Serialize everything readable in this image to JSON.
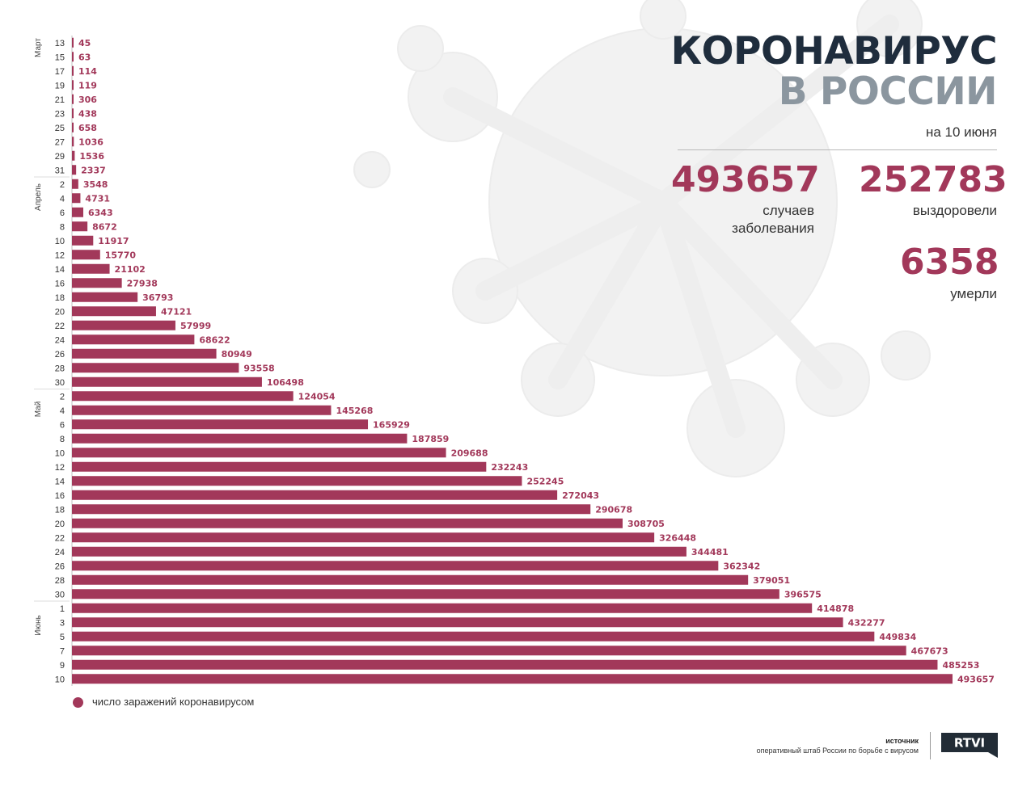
{
  "header": {
    "title_line1": "КОРОНАВИРУС",
    "title_line2": "В РОССИИ",
    "date": "на 10 июня"
  },
  "stats": {
    "cases_value": "493657",
    "cases_label_line1": "случаев",
    "cases_label_line2": "заболевания",
    "recovered_value": "252783",
    "recovered_label": "выздоровели",
    "deaths_value": "6358",
    "deaths_label": "умерли"
  },
  "legend": {
    "label": "число заражений коронавирусом"
  },
  "source": {
    "title": "источник",
    "text": "оперативный штаб России по борьбе с вирусом"
  },
  "logo": {
    "text": "RTVI"
  },
  "colors": {
    "bar": "#a2385a",
    "title_dark": "#1f2d3d",
    "title_gray": "#8b969f"
  },
  "chart_data": {
    "type": "bar",
    "orientation": "horizontal",
    "categories": [
      "13",
      "15",
      "17",
      "19",
      "21",
      "23",
      "25",
      "27",
      "29",
      "31",
      "2",
      "4",
      "6",
      "8",
      "10",
      "12",
      "14",
      "16",
      "18",
      "20",
      "22",
      "24",
      "26",
      "28",
      "30",
      "2",
      "4",
      "6",
      "8",
      "10",
      "12",
      "14",
      "16",
      "18",
      "20",
      "22",
      "24",
      "26",
      "28",
      "30",
      "1",
      "3",
      "5",
      "7",
      "9",
      "10"
    ],
    "month_groups": [
      {
        "label": "Март",
        "start": 0,
        "end": 9
      },
      {
        "label": "Апрель",
        "start": 10,
        "end": 24
      },
      {
        "label": "Май",
        "start": 25,
        "end": 39
      },
      {
        "label": "Июнь",
        "start": 40,
        "end": 45
      }
    ],
    "series": [
      {
        "name": "число заражений коронавирусом",
        "values": [
          45,
          63,
          114,
          119,
          306,
          438,
          658,
          1036,
          1536,
          2337,
          3548,
          4731,
          6343,
          8672,
          11917,
          15770,
          21102,
          27938,
          36793,
          47121,
          57999,
          68622,
          80949,
          93558,
          106498,
          124054,
          145268,
          165929,
          187859,
          209688,
          232243,
          252245,
          272043,
          290678,
          308705,
          326448,
          344481,
          362342,
          379051,
          396575,
          414878,
          432277,
          449834,
          467673,
          485253,
          493657
        ]
      }
    ],
    "xlim": [
      0,
      493657
    ]
  }
}
